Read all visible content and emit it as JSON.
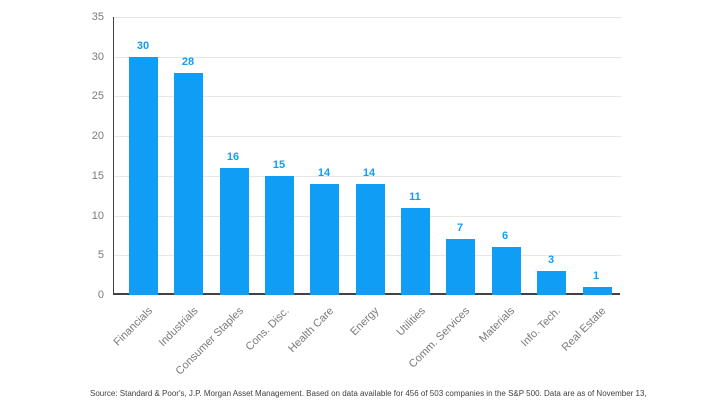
{
  "chart_data": {
    "type": "bar",
    "title": "",
    "categories": [
      "Financials",
      "Industrials",
      "Consumer Staples",
      "Cons. Disc.",
      "Health Care",
      "Energy",
      "Utilities",
      "Comm. Services",
      "Materials",
      "Info. Tech.",
      "Real Estate"
    ],
    "values": [
      30,
      28,
      16,
      15,
      14,
      14,
      11,
      7,
      6,
      3,
      1
    ],
    "xlabel": "",
    "ylabel": "",
    "ylim": [
      0,
      35
    ],
    "yticks": [
      0,
      5,
      10,
      15,
      20,
      25,
      30,
      35
    ],
    "grid": "horizontal",
    "legend_position": "none",
    "bar_color": "#0f9df5",
    "value_label_color": "#0f9df5",
    "axis_line_color": "#424242",
    "gridline_color": "#e7e7e7",
    "tick_label_color": "#7a7a7a"
  },
  "footer": {
    "source_note": "Source: Standard & Poor's, J.P. Morgan Asset Management. Based on data available for 456 of 503 companies in the S&P 500. Data are as of November 13,"
  }
}
